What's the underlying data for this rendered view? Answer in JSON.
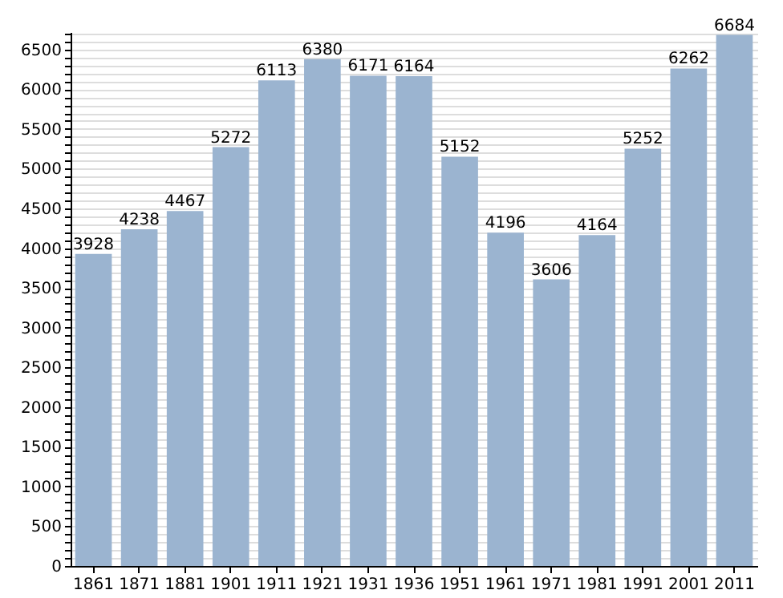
{
  "chart_data": {
    "type": "bar",
    "categories": [
      "1861",
      "1871",
      "1881",
      "1901",
      "1911",
      "1921",
      "1931",
      "1936",
      "1951",
      "1961",
      "1971",
      "1981",
      "1991",
      "2001",
      "2011"
    ],
    "values": [
      3928,
      4238,
      4467,
      5272,
      6113,
      6380,
      6171,
      6164,
      5152,
      4196,
      3606,
      4164,
      5252,
      6262,
      6684
    ],
    "color": "#9bb4d0",
    "data_labels": true,
    "grid": "y",
    "ylim": [
      0,
      6720
    ],
    "yticks": [
      0,
      {
        "value": 100,
        "label": null
      },
      {
        "value": 200,
        "label": null
      },
      {
        "value": 300,
        "label": null
      },
      {
        "value": 400,
        "label": null
      },
      500,
      {
        "value": 600,
        "label": null
      },
      {
        "value": 700,
        "label": null
      },
      {
        "value": 800,
        "label": null
      },
      {
        "value": 900,
        "label": null
      },
      1000,
      {
        "value": 1100,
        "label": null
      },
      {
        "value": 1200,
        "label": null
      },
      {
        "value": 1300,
        "label": null
      },
      {
        "value": 1400,
        "label": null
      },
      1500,
      {
        "value": 1600,
        "label": null
      },
      {
        "value": 1700,
        "label": null
      },
      {
        "value": 1800,
        "label": null
      },
      {
        "value": 1900,
        "label": null
      },
      2000,
      {
        "value": 2100,
        "label": null
      },
      {
        "value": 2200,
        "label": null
      },
      {
        "value": 2300,
        "label": null
      },
      {
        "value": 2400,
        "label": null
      },
      2500,
      {
        "value": 2600,
        "label": null
      },
      {
        "value": 2700,
        "label": null
      },
      {
        "value": 2800,
        "label": null
      },
      {
        "value": 2900,
        "label": null
      },
      3000,
      {
        "value": 3100,
        "label": null
      },
      {
        "value": 3200,
        "label": null
      },
      {
        "value": 3300,
        "label": null
      },
      {
        "value": 3400,
        "label": null
      },
      3500,
      {
        "value": 3600,
        "label": null
      },
      {
        "value": 3700,
        "label": null
      },
      {
        "value": 3800,
        "label": null
      },
      {
        "value": 3900,
        "label": null
      },
      4000,
      {
        "value": 4100,
        "label": null
      },
      {
        "value": 4200,
        "label": null
      },
      {
        "value": 4300,
        "label": null
      },
      {
        "value": 4400,
        "label": null
      },
      4500,
      {
        "value": 4600,
        "label": null
      },
      {
        "value": 4700,
        "label": null
      },
      {
        "value": 4800,
        "label": null
      },
      {
        "value": 4900,
        "label": null
      },
      5000,
      {
        "value": 5100,
        "label": null
      },
      {
        "value": 5200,
        "label": null
      },
      {
        "value": 5300,
        "label": null
      },
      {
        "value": 5400,
        "label": null
      },
      5500,
      {
        "value": 5600,
        "label": null
      },
      {
        "value": 5700,
        "label": null
      },
      {
        "value": 5800,
        "label": null
      },
      {
        "value": 5900,
        "label": null
      },
      6000,
      {
        "value": 6100,
        "label": null
      },
      {
        "value": 6200,
        "label": null
      },
      {
        "value": 6300,
        "label": null
      },
      {
        "value": 6400,
        "label": null
      },
      6500,
      {
        "value": 6600,
        "label": null
      },
      {
        "value": 6700,
        "label": null
      }
    ]
  }
}
